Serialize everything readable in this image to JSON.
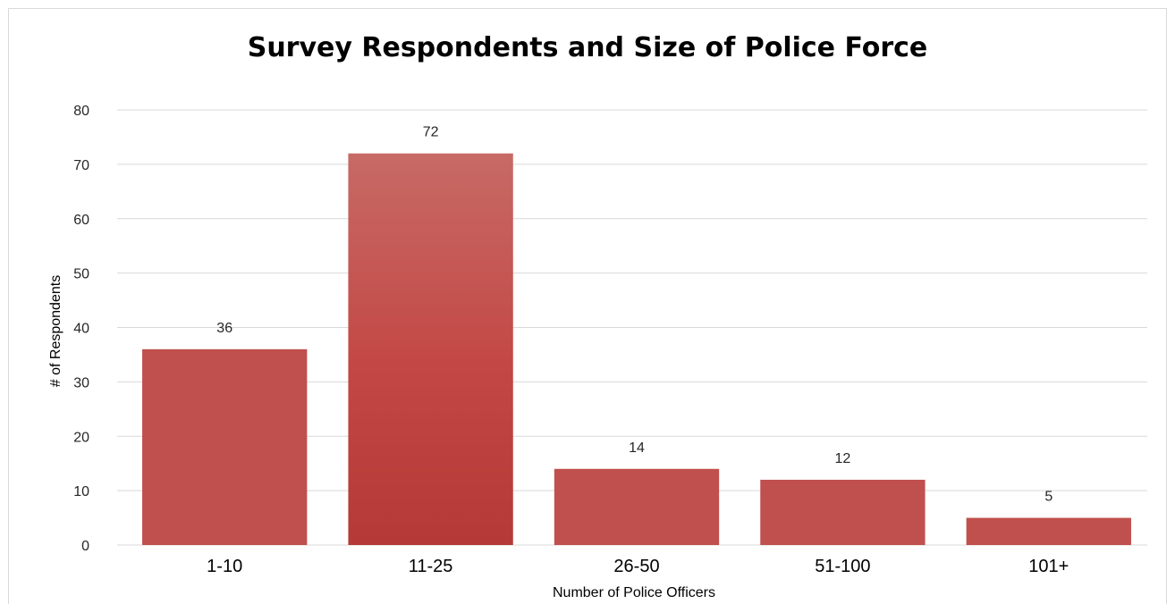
{
  "chart_data": {
    "type": "bar",
    "title": "Survey Respondents and Size of Police Force",
    "xlabel": "Number of Police Officers",
    "ylabel": "# of Respondents",
    "categories": [
      "1-10",
      "11-25",
      "26-50",
      "51-100",
      "101+"
    ],
    "values": [
      36,
      72,
      14,
      12,
      5
    ],
    "ylim": [
      0,
      80
    ],
    "yticks": [
      0,
      10,
      20,
      30,
      40,
      50,
      60,
      70,
      80
    ],
    "grid": true,
    "legend": "none",
    "data_labels": true,
    "colors": {
      "bar": "#c0504d",
      "bar_highlight": "#c0504d",
      "grid": "#d9d9d9"
    }
  }
}
